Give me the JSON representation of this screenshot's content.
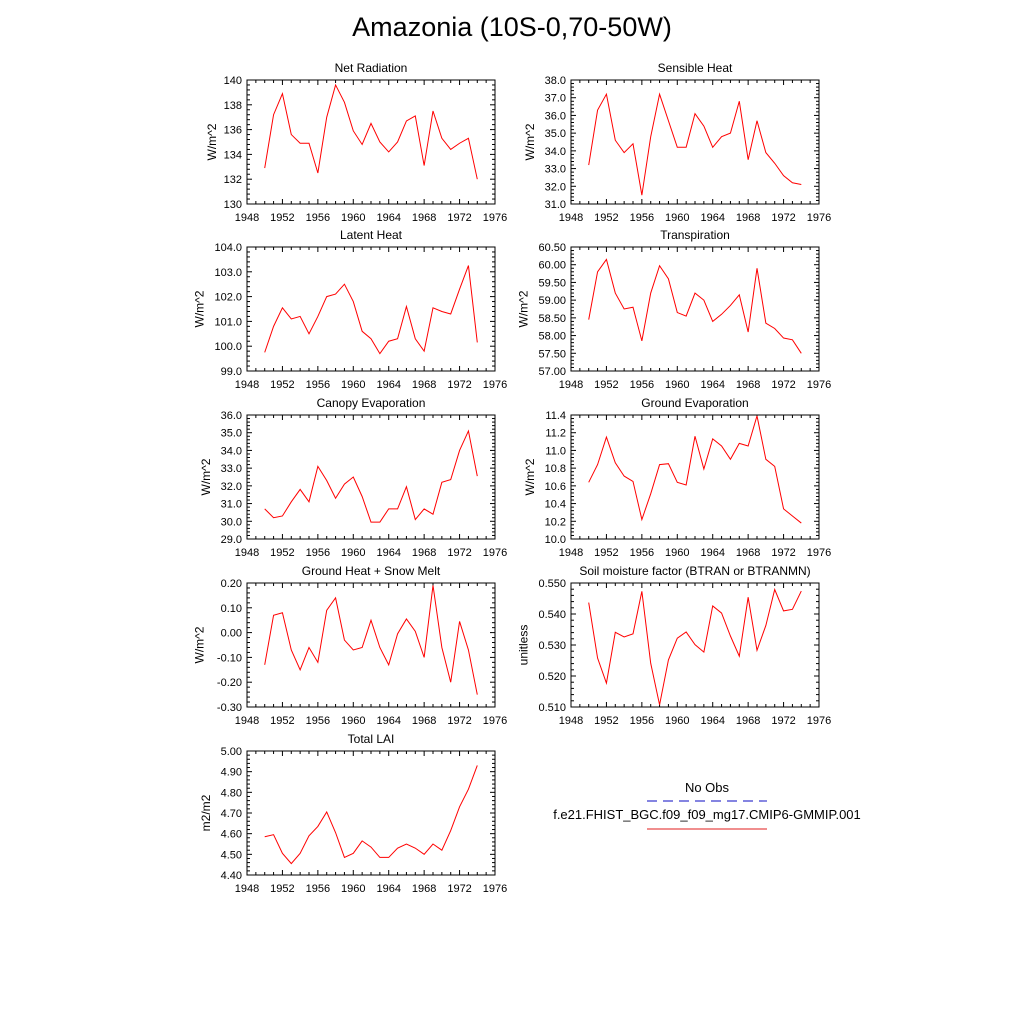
{
  "title": "Amazonia (10S-0,70-50W)",
  "legend": {
    "entries": [
      {
        "label": "No Obs",
        "color": "#3b3bcf",
        "dash": true
      },
      {
        "label": "f.e21.FHIST_BGC.f09_f09_mg17.CMIP6-GMMIP.001",
        "color": "#e64a4a",
        "dash": false
      }
    ]
  },
  "chart_data": [
    {
      "type": "line",
      "title": "Net Radiation",
      "ylabel": "W/m^2",
      "xlim": [
        1948,
        1976
      ],
      "xticks": [
        1948,
        1952,
        1956,
        1960,
        1964,
        1968,
        1972,
        1976
      ],
      "ylim": [
        130,
        140
      ],
      "yticks": [
        "130",
        "132",
        "134",
        "136",
        "138",
        "140"
      ],
      "x": [
        1950,
        1951,
        1952,
        1953,
        1954,
        1955,
        1956,
        1957,
        1958,
        1959,
        1960,
        1961,
        1962,
        1963,
        1964,
        1965,
        1966,
        1967,
        1968,
        1969,
        1970,
        1971,
        1972,
        1973,
        1974
      ],
      "series": [
        {
          "color": "#ff0000",
          "values": [
            132.9,
            137.2,
            138.9,
            135.6,
            134.9,
            134.9,
            132.5,
            137.0,
            139.6,
            138.2,
            135.9,
            134.8,
            136.5,
            135.0,
            134.2,
            135.0,
            136.7,
            137.1,
            133.1,
            137.5,
            135.3,
            134.4,
            134.9,
            135.3,
            132.0
          ]
        }
      ]
    },
    {
      "type": "line",
      "title": "Sensible Heat",
      "ylabel": "W/m^2",
      "xlim": [
        1948,
        1976
      ],
      "xticks": [
        1948,
        1952,
        1956,
        1960,
        1964,
        1968,
        1972,
        1976
      ],
      "ylim": [
        31,
        38
      ],
      "yticks": [
        "31.0",
        "32.0",
        "33.0",
        "34.0",
        "35.0",
        "36.0",
        "37.0",
        "38.0"
      ],
      "x": [
        1950,
        1951,
        1952,
        1953,
        1954,
        1955,
        1956,
        1957,
        1958,
        1959,
        1960,
        1961,
        1962,
        1963,
        1964,
        1965,
        1966,
        1967,
        1968,
        1969,
        1970,
        1971,
        1972,
        1973,
        1974
      ],
      "series": [
        {
          "color": "#ff0000",
          "values": [
            33.2,
            36.3,
            37.2,
            34.6,
            33.9,
            34.4,
            31.5,
            34.8,
            37.2,
            35.7,
            34.2,
            34.2,
            36.1,
            35.4,
            34.2,
            34.8,
            35.0,
            36.8,
            33.5,
            35.7,
            33.9,
            33.3,
            32.6,
            32.2,
            32.1
          ]
        }
      ]
    },
    {
      "type": "line",
      "title": "Latent Heat",
      "ylabel": "W/m^2",
      "xlim": [
        1948,
        1976
      ],
      "xticks": [
        1948,
        1952,
        1956,
        1960,
        1964,
        1968,
        1972,
        1976
      ],
      "ylim": [
        99,
        104
      ],
      "yticks": [
        "99.0",
        "100.0",
        "101.0",
        "102.0",
        "103.0",
        "104.0"
      ],
      "x": [
        1950,
        1951,
        1952,
        1953,
        1954,
        1955,
        1956,
        1957,
        1958,
        1959,
        1960,
        1961,
        1962,
        1963,
        1964,
        1965,
        1966,
        1967,
        1968,
        1969,
        1970,
        1971,
        1972,
        1973,
        1974
      ],
      "series": [
        {
          "color": "#ff0000",
          "values": [
            99.75,
            100.8,
            101.55,
            101.1,
            101.2,
            100.5,
            101.2,
            102.0,
            102.1,
            102.5,
            101.8,
            100.6,
            100.3,
            99.7,
            100.2,
            100.3,
            101.6,
            100.3,
            99.8,
            101.55,
            101.4,
            101.3,
            102.3,
            103.25,
            100.15
          ]
        }
      ]
    },
    {
      "type": "line",
      "title": "Transpiration",
      "ylabel": "W/m^2",
      "xlim": [
        1948,
        1976
      ],
      "xticks": [
        1948,
        1952,
        1956,
        1960,
        1964,
        1968,
        1972,
        1976
      ],
      "ylim": [
        57,
        60.5
      ],
      "yticks": [
        "57.00",
        "57.50",
        "58.00",
        "58.50",
        "59.00",
        "59.50",
        "60.00",
        "60.50"
      ],
      "x": [
        1950,
        1951,
        1952,
        1953,
        1954,
        1955,
        1956,
        1957,
        1958,
        1959,
        1960,
        1961,
        1962,
        1963,
        1964,
        1965,
        1966,
        1967,
        1968,
        1969,
        1970,
        1971,
        1972,
        1973,
        1974
      ],
      "series": [
        {
          "color": "#ff0000",
          "values": [
            58.45,
            59.8,
            60.15,
            59.2,
            58.75,
            58.8,
            57.85,
            59.2,
            59.97,
            59.6,
            58.65,
            58.55,
            59.2,
            59.0,
            58.4,
            58.6,
            58.85,
            59.15,
            58.1,
            59.9,
            58.35,
            58.2,
            57.93,
            57.88,
            57.5
          ]
        }
      ]
    },
    {
      "type": "line",
      "title": "Canopy Evaporation",
      "ylabel": "W/m^2",
      "xlim": [
        1948,
        1976
      ],
      "xticks": [
        1948,
        1952,
        1956,
        1960,
        1964,
        1968,
        1972,
        1976
      ],
      "ylim": [
        29,
        36
      ],
      "yticks": [
        "29.0",
        "30.0",
        "31.0",
        "32.0",
        "33.0",
        "34.0",
        "35.0",
        "36.0"
      ],
      "x": [
        1950,
        1951,
        1952,
        1953,
        1954,
        1955,
        1956,
        1957,
        1958,
        1959,
        1960,
        1961,
        1962,
        1963,
        1964,
        1965,
        1966,
        1967,
        1968,
        1969,
        1970,
        1971,
        1972,
        1973,
        1974
      ],
      "series": [
        {
          "color": "#ff0000",
          "values": [
            30.7,
            30.2,
            30.3,
            31.1,
            31.8,
            31.1,
            33.1,
            32.3,
            31.3,
            32.1,
            32.5,
            31.4,
            29.95,
            29.95,
            30.7,
            30.7,
            31.95,
            30.1,
            30.7,
            30.4,
            32.2,
            32.35,
            34.0,
            35.1,
            32.55
          ]
        }
      ]
    },
    {
      "type": "line",
      "title": "Ground Evaporation",
      "ylabel": "W/m^2",
      "xlim": [
        1948,
        1976
      ],
      "xticks": [
        1948,
        1952,
        1956,
        1960,
        1964,
        1968,
        1972,
        1976
      ],
      "ylim": [
        10,
        11.4
      ],
      "yticks": [
        "10.0",
        "10.2",
        "10.4",
        "10.6",
        "10.8",
        "11.0",
        "11.2",
        "11.4"
      ],
      "x": [
        1950,
        1951,
        1952,
        1953,
        1954,
        1955,
        1956,
        1957,
        1958,
        1959,
        1960,
        1961,
        1962,
        1963,
        1964,
        1965,
        1966,
        1967,
        1968,
        1969,
        1970,
        1971,
        1972,
        1973,
        1974
      ],
      "series": [
        {
          "color": "#ff0000",
          "values": [
            10.64,
            10.84,
            11.15,
            10.86,
            10.71,
            10.65,
            10.22,
            10.51,
            10.84,
            10.85,
            10.64,
            10.61,
            11.16,
            10.79,
            11.13,
            11.05,
            10.9,
            11.08,
            11.05,
            11.39,
            10.9,
            10.82,
            10.34,
            10.26,
            10.18
          ]
        }
      ]
    },
    {
      "type": "line",
      "title": "Ground Heat + Snow Melt",
      "ylabel": "W/m^2",
      "xlim": [
        1948,
        1976
      ],
      "xticks": [
        1948,
        1952,
        1956,
        1960,
        1964,
        1968,
        1972,
        1976
      ],
      "ylim": [
        -0.3,
        0.2
      ],
      "yticks": [
        "-0.30",
        "-0.20",
        "-0.10",
        "0.00",
        "0.10",
        "0.20"
      ],
      "x": [
        1950,
        1951,
        1952,
        1953,
        1954,
        1955,
        1956,
        1957,
        1958,
        1959,
        1960,
        1961,
        1962,
        1963,
        1964,
        1965,
        1966,
        1967,
        1968,
        1969,
        1970,
        1971,
        1972,
        1973,
        1974
      ],
      "series": [
        {
          "color": "#ff0000",
          "values": [
            -0.13,
            0.07,
            0.08,
            -0.07,
            -0.15,
            -0.06,
            -0.12,
            0.09,
            0.14,
            -0.03,
            -0.07,
            -0.06,
            0.05,
            -0.06,
            -0.13,
            -0.005,
            0.055,
            0.005,
            -0.1,
            0.19,
            -0.06,
            -0.2,
            0.045,
            -0.07,
            -0.25
          ]
        }
      ]
    },
    {
      "type": "line",
      "title": "Soil moisture factor (BTRAN or BTRANMN)",
      "ylabel": "unitless",
      "xlim": [
        1948,
        1976
      ],
      "xticks": [
        1948,
        1952,
        1956,
        1960,
        1964,
        1968,
        1972,
        1976
      ],
      "ylim": [
        0.51,
        0.55
      ],
      "yticks": [
        "0.510",
        "0.520",
        "0.530",
        "0.540",
        "0.550"
      ],
      "x": [
        1950,
        1951,
        1952,
        1953,
        1954,
        1955,
        1956,
        1957,
        1958,
        1959,
        1960,
        1961,
        1962,
        1963,
        1964,
        1965,
        1966,
        1967,
        1968,
        1969,
        1970,
        1971,
        1972,
        1973,
        1974
      ],
      "series": [
        {
          "color": "#ff0000",
          "values": [
            0.5437,
            0.5258,
            0.5177,
            0.5341,
            0.5326,
            0.5336,
            0.5473,
            0.5241,
            0.5107,
            0.5252,
            0.5322,
            0.5342,
            0.5301,
            0.5277,
            0.5426,
            0.5403,
            0.5329,
            0.5264,
            0.5454,
            0.5283,
            0.5363,
            0.5479,
            0.541,
            0.5415,
            0.5474
          ]
        }
      ]
    },
    {
      "type": "line",
      "title": "Total LAI",
      "ylabel": "m2/m2",
      "xlim": [
        1948,
        1976
      ],
      "xticks": [
        1948,
        1952,
        1956,
        1960,
        1964,
        1968,
        1972,
        1976
      ],
      "ylim": [
        4.4,
        5.0
      ],
      "yticks": [
        "4.40",
        "4.50",
        "4.60",
        "4.70",
        "4.80",
        "4.90",
        "5.00"
      ],
      "x": [
        1950,
        1951,
        1952,
        1953,
        1954,
        1955,
        1956,
        1957,
        1958,
        1959,
        1960,
        1961,
        1962,
        1963,
        1964,
        1965,
        1966,
        1967,
        1968,
        1969,
        1970,
        1971,
        1972,
        1973,
        1974
      ],
      "series": [
        {
          "color": "#ff0000",
          "values": [
            4.585,
            4.595,
            4.505,
            4.455,
            4.505,
            4.59,
            4.635,
            4.705,
            4.605,
            4.485,
            4.505,
            4.565,
            4.535,
            4.485,
            4.485,
            4.53,
            4.55,
            4.53,
            4.5,
            4.55,
            4.52,
            4.615,
            4.73,
            4.815,
            4.93
          ]
        }
      ]
    }
  ]
}
